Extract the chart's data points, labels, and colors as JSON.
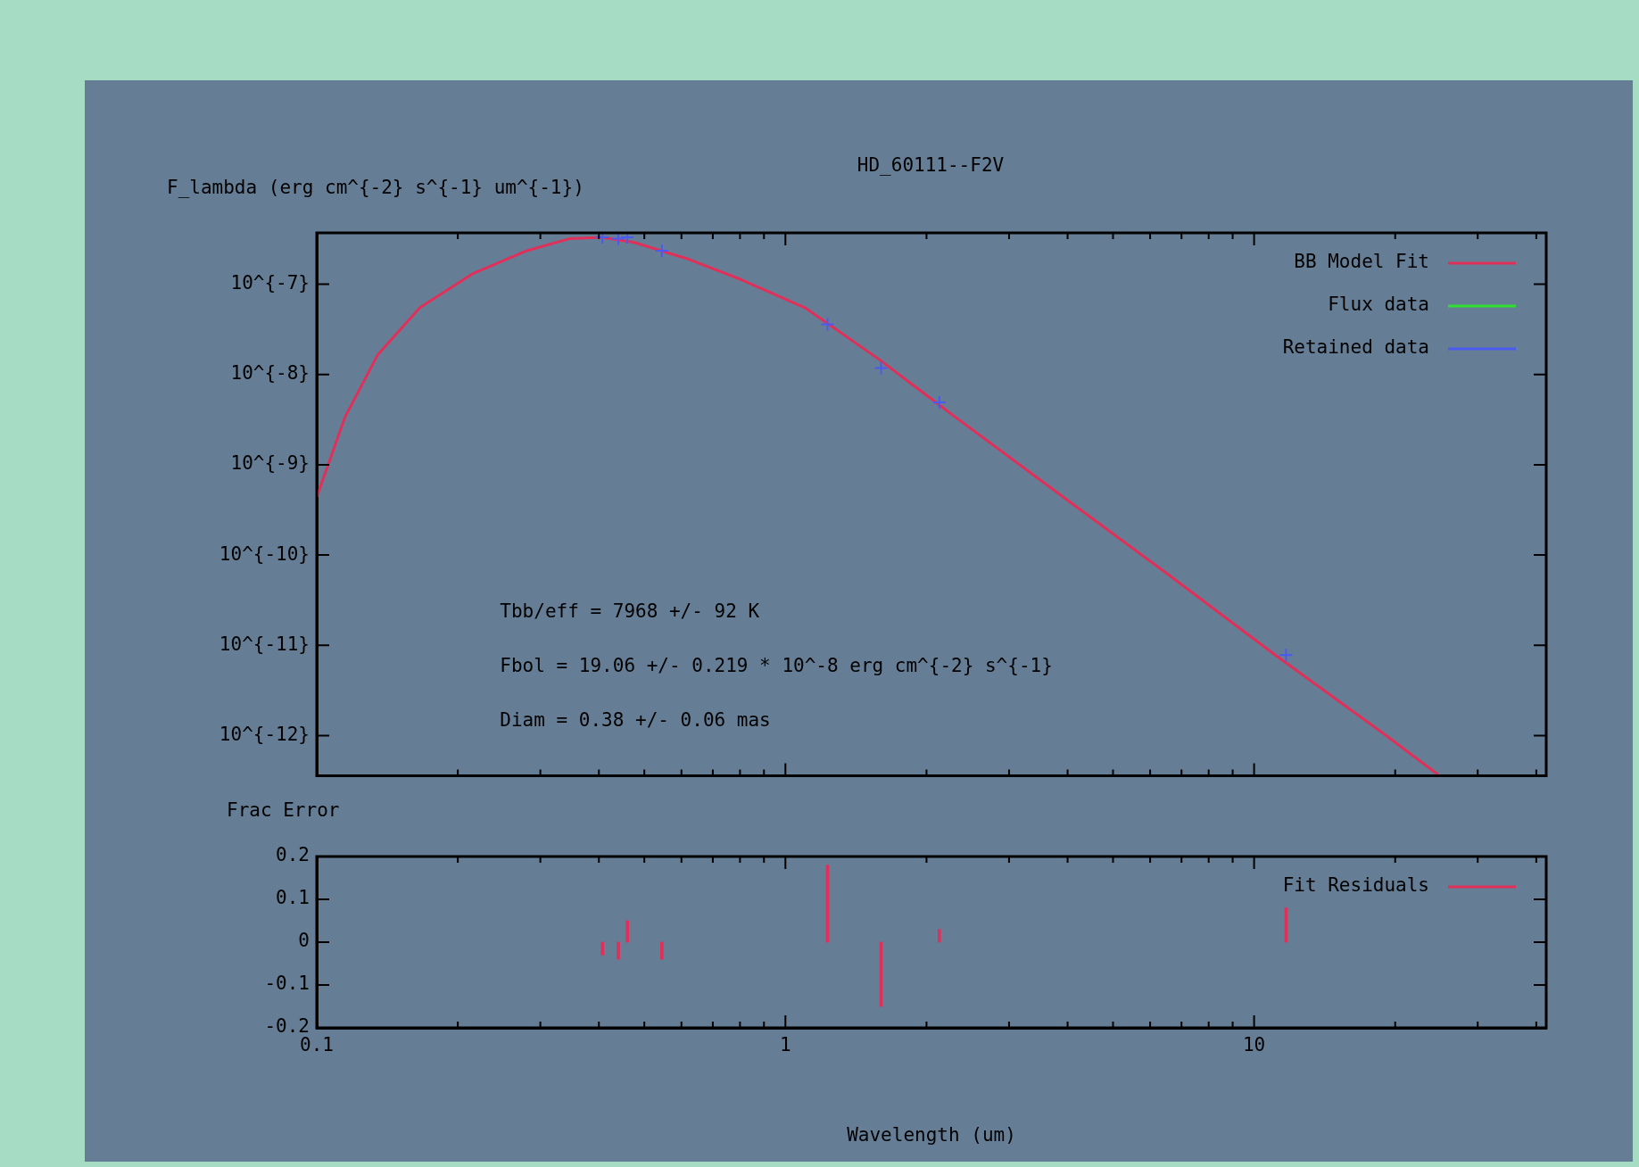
{
  "chart_data": [
    {
      "type": "line",
      "title": "HD_60111--F2V",
      "ylabel": "F_lambda (erg cm^{-2} s^{-1} um^{-1})",
      "annotations": [
        "Tbb/eff = 7968 +/- 92 K",
        "Fbol = 19.06 +/- 0.219 * 10^-8 erg cm^{-2} s^{-1}",
        "Diam = 0.38 +/- 0.06 mas"
      ],
      "log": "xy",
      "xlim": [
        0.1,
        42
      ],
      "xticks": [
        0.1,
        {
          "value": 0.2,
          "label": null
        },
        {
          "value": 0.3,
          "label": null
        },
        {
          "value": 0.4,
          "label": null
        },
        {
          "value": 0.5,
          "label": null
        },
        {
          "value": 0.6,
          "label": null
        },
        {
          "value": 0.7,
          "label": null
        },
        {
          "value": 0.8,
          "label": null
        },
        {
          "value": 0.9,
          "label": null
        },
        1,
        {
          "value": 2,
          "label": null
        },
        {
          "value": 3,
          "label": null
        },
        {
          "value": 4,
          "label": null
        },
        {
          "value": 5,
          "label": null
        },
        {
          "value": 6,
          "label": null
        },
        {
          "value": 7,
          "label": null
        },
        {
          "value": 8,
          "label": null
        },
        {
          "value": 9,
          "label": null
        },
        10,
        {
          "value": 20,
          "label": null
        },
        {
          "value": 30,
          "label": null
        },
        {
          "value": 40,
          "label": null
        }
      ],
      "ylim": [
        3.6e-13,
        3.7e-07
      ],
      "yticks": [
        {
          "value": 1e-07,
          "label": "10^{-7}"
        },
        {
          "value": 1e-08,
          "label": "10^{-8}"
        },
        {
          "value": 1e-09,
          "label": "10^{-9}"
        },
        {
          "value": 1e-10,
          "label": "10^{-10}"
        },
        {
          "value": 1e-11,
          "label": "10^{-11}"
        },
        {
          "value": 1e-12,
          "label": "10^{-12}"
        }
      ],
      "tick_labels": "y",
      "legend": "top right",
      "series": [
        {
          "name": "BB Model Fit",
          "type": "line",
          "marker": "none",
          "color": "#e0305a",
          "x": [
            0.1,
            0.115,
            0.135,
            0.166,
            0.216,
            0.281,
            0.347,
            0.406,
            0.476,
            0.62,
            0.806,
            1.1,
            1.59,
            2.3,
            3.89,
            6.58,
            11.1,
            18.8,
            24.7
          ],
          "values": [
            4.4e-10,
            3.4e-09,
            1.66e-08,
            5.5e-08,
            1.32e-07,
            2.35e-07,
            3.2e-07,
            3.3e-07,
            2.9e-07,
            1.9e-07,
            1.12e-07,
            5.5e-08,
            1.45e-08,
            3.4e-09,
            4.5e-10,
            6e-11,
            7.8e-12,
            1.07e-12,
            3.7e-13
          ]
        },
        {
          "name": "Flux data",
          "type": "scatter",
          "marker": "cross",
          "color": "#30e030"
        },
        {
          "name": "Retained data",
          "type": "scatter",
          "marker": "cross",
          "color": "#4a5af0",
          "x": [
            0.407,
            0.44,
            0.46,
            0.545,
            1.23,
            1.6,
            2.13,
            11.7
          ],
          "values": [
            3.3e-07,
            3.2e-07,
            3.3e-07,
            2.35e-07,
            3.6e-08,
            1.18e-08,
            4.9e-09,
            7.8e-12
          ]
        }
      ]
    },
    {
      "type": "bar",
      "ylabel": "Frac Error",
      "xlabel": "Wavelength (um)",
      "log": "x",
      "xlim": [
        0.1,
        42
      ],
      "xticks": [
        0.1,
        {
          "value": 0.2,
          "label": null
        },
        {
          "value": 0.3,
          "label": null
        },
        {
          "value": 0.4,
          "label": null
        },
        {
          "value": 0.5,
          "label": null
        },
        {
          "value": 0.6,
          "label": null
        },
        {
          "value": 0.7,
          "label": null
        },
        {
          "value": 0.8,
          "label": null
        },
        {
          "value": 0.9,
          "label": null
        },
        1,
        {
          "value": 2,
          "label": null
        },
        {
          "value": 3,
          "label": null
        },
        {
          "value": 4,
          "label": null
        },
        {
          "value": 5,
          "label": null
        },
        {
          "value": 6,
          "label": null
        },
        {
          "value": 7,
          "label": null
        },
        {
          "value": 8,
          "label": null
        },
        {
          "value": 9,
          "label": null
        },
        10,
        {
          "value": 20,
          "label": null
        },
        {
          "value": 30,
          "label": null
        },
        {
          "value": 40,
          "label": null
        }
      ],
      "ylim": [
        -0.2,
        0.2
      ],
      "yticks": [
        0.2,
        0.1,
        0,
        -0.1,
        -0.2
      ],
      "legend": "top right",
      "series": [
        {
          "name": "Fit Residuals",
          "color": "#e0305a",
          "x": [
            0.407,
            0.44,
            0.46,
            0.545,
            1.23,
            1.6,
            2.13,
            11.7
          ],
          "values": [
            -0.03,
            -0.04,
            0.05,
            -0.04,
            0.18,
            -0.15,
            0.03,
            0.08
          ]
        }
      ]
    }
  ]
}
